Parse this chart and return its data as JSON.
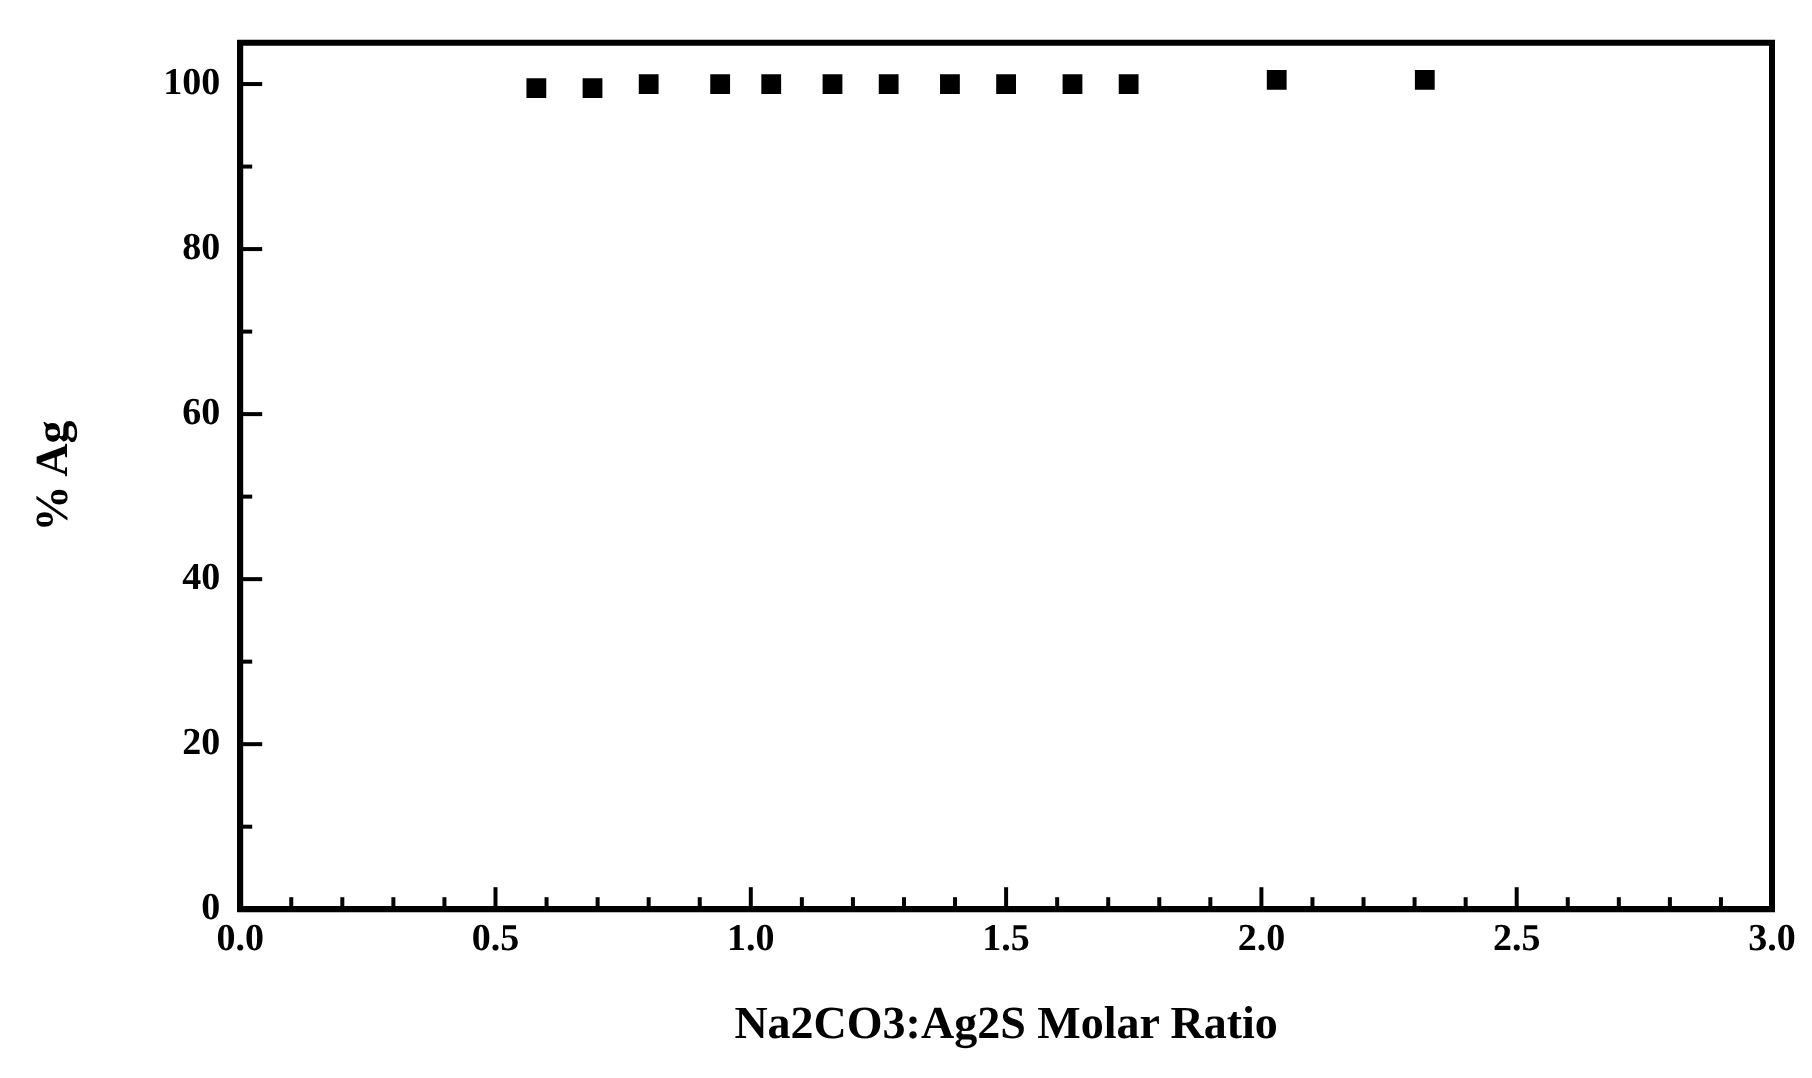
{
  "chart_data": {
    "type": "scatter",
    "xlabel": "Na2CO3:Ag2S Molar Ratio",
    "ylabel": "% Ag",
    "marker": "square",
    "grid": false,
    "legend": false,
    "x": [
      0.58,
      0.69,
      0.8,
      0.94,
      1.04,
      1.16,
      1.27,
      1.39,
      1.5,
      1.63,
      1.74,
      2.03,
      2.32
    ],
    "series": [
      {
        "color": "#000000",
        "values": [
          99.5,
          99.5,
          100,
          100,
          100,
          100,
          100,
          100,
          100,
          100,
          100,
          100.5,
          100.5
        ]
      }
    ],
    "xlim": [
      0,
      3
    ],
    "xticks": [
      {
        "value": 0,
        "label": "0.0"
      },
      {
        "value": 0.1,
        "label": null
      },
      {
        "value": 0.2,
        "label": null
      },
      {
        "value": 0.3,
        "label": null
      },
      {
        "value": 0.4,
        "label": null
      },
      {
        "value": 0.5,
        "label": "0.5"
      },
      {
        "value": 0.6,
        "label": null
      },
      {
        "value": 0.7,
        "label": null
      },
      {
        "value": 0.8,
        "label": null
      },
      {
        "value": 0.9,
        "label": null
      },
      {
        "value": 1,
        "label": "1.0"
      },
      {
        "value": 1.1,
        "label": null
      },
      {
        "value": 1.2,
        "label": null
      },
      {
        "value": 1.3,
        "label": null
      },
      {
        "value": 1.4,
        "label": null
      },
      {
        "value": 1.5,
        "label": "1.5"
      },
      {
        "value": 1.6,
        "label": null
      },
      {
        "value": 1.7,
        "label": null
      },
      {
        "value": 1.8,
        "label": null
      },
      {
        "value": 1.9,
        "label": null
      },
      {
        "value": 2,
        "label": "2.0"
      },
      {
        "value": 2.1,
        "label": null
      },
      {
        "value": 2.2,
        "label": null
      },
      {
        "value": 2.3,
        "label": null
      },
      {
        "value": 2.4,
        "label": null
      },
      {
        "value": 2.5,
        "label": "2.5"
      },
      {
        "value": 2.6,
        "label": null
      },
      {
        "value": 2.7,
        "label": null
      },
      {
        "value": 2.8,
        "label": null
      },
      {
        "value": 2.9,
        "label": null
      },
      {
        "value": 3,
        "label": "3.0"
      }
    ],
    "ylim": [
      0,
      105
    ],
    "yticks": [
      0,
      {
        "value": 10,
        "label": null
      },
      20,
      {
        "value": 30,
        "label": null
      },
      40,
      {
        "value": 50,
        "label": null
      },
      60,
      {
        "value": 70,
        "label": null
      },
      80,
      {
        "value": 90,
        "label": null
      },
      100
    ]
  }
}
